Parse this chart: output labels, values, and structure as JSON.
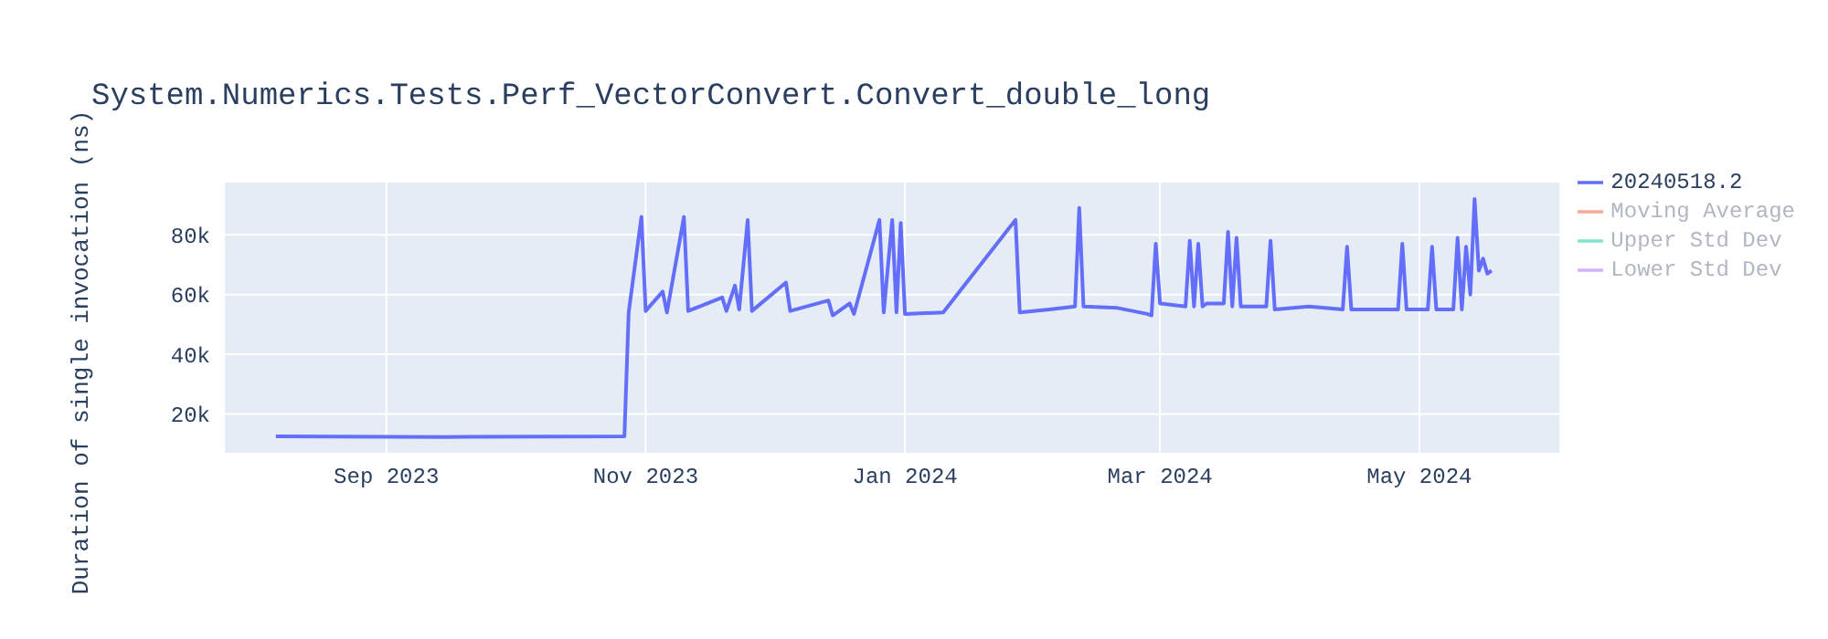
{
  "chart_data": {
    "type": "line",
    "title": "System.Numerics.Tests.Perf_VectorConvert.Convert_double_long",
    "ylabel": "Duration of single invocation (ns)",
    "x": [
      "2023-08-06",
      "2023-09-15",
      "2023-10-10",
      "2023-10-27",
      "2023-10-28",
      "2023-10-31",
      "2023-11-01",
      "2023-11-05",
      "2023-11-06",
      "2023-11-10",
      "2023-11-11",
      "2023-11-19",
      "2023-11-20",
      "2023-11-22",
      "2023-11-23",
      "2023-11-25",
      "2023-11-26",
      "2023-12-04",
      "2023-12-05",
      "2023-12-14",
      "2023-12-15",
      "2023-12-19",
      "2023-12-20",
      "2023-12-26",
      "2023-12-27",
      "2023-12-29",
      "2023-12-30",
      "2023-12-31",
      "2024-01-01",
      "2024-01-10",
      "2024-01-27",
      "2024-01-28",
      "2024-02-04",
      "2024-02-10",
      "2024-02-11",
      "2024-02-12",
      "2024-02-20",
      "2024-02-27",
      "2024-02-28",
      "2024-02-29",
      "2024-03-01",
      "2024-03-07",
      "2024-03-08",
      "2024-03-09",
      "2024-03-10",
      "2024-03-11",
      "2024-03-12",
      "2024-03-16",
      "2024-03-17",
      "2024-03-18",
      "2024-03-19",
      "2024-03-20",
      "2024-03-26",
      "2024-03-27",
      "2024-03-28",
      "2024-04-05",
      "2024-04-13",
      "2024-04-14",
      "2024-04-15",
      "2024-04-26",
      "2024-04-27",
      "2024-04-28",
      "2024-05-03",
      "2024-05-04",
      "2024-05-05",
      "2024-05-09",
      "2024-05-10",
      "2024-05-11",
      "2024-05-12",
      "2024-05-13",
      "2024-05-14",
      "2024-05-15",
      "2024-05-16",
      "2024-05-17",
      "2024-05-18"
    ],
    "series": [
      {
        "name": "20240518.2",
        "color": "#636efa",
        "values": [
          12500,
          12300,
          12400,
          12500,
          54000,
          86000,
          54500,
          61000,
          54000,
          86000,
          54500,
          59000,
          54500,
          63000,
          55000,
          85000,
          54500,
          64000,
          54500,
          58000,
          53000,
          57000,
          53500,
          85000,
          54000,
          85000,
          54000,
          84000,
          53500,
          54000,
          85000,
          54000,
          55000,
          56000,
          89000,
          56000,
          55500,
          53500,
          53000,
          77000,
          57000,
          56000,
          78000,
          56000,
          77000,
          56000,
          57000,
          57000,
          81000,
          56000,
          79000,
          56000,
          56000,
          78000,
          55000,
          56000,
          55000,
          76000,
          55000,
          55000,
          77000,
          55000,
          55000,
          76000,
          55000,
          55000,
          79000,
          55000,
          76000,
          60000,
          92000,
          68000,
          72000,
          67000,
          68000
        ]
      },
      {
        "name": "Moving Average",
        "color": "#f7aa9d",
        "values": [
          null,
          null,
          null,
          null,
          null,
          null,
          null,
          null,
          null,
          null,
          null,
          null,
          null,
          null,
          null,
          null,
          null,
          null,
          null,
          null,
          null,
          null,
          null,
          null,
          null,
          null,
          null,
          null,
          null,
          null,
          null,
          null,
          null,
          null,
          null,
          null,
          null,
          null,
          null,
          null,
          null,
          null,
          null,
          null,
          null,
          null,
          null,
          null,
          null,
          null,
          null,
          null,
          null,
          null,
          null,
          null,
          null,
          null,
          null,
          null,
          null,
          null,
          null,
          null,
          null,
          null,
          null,
          null,
          null,
          null,
          null,
          null,
          null,
          null,
          null
        ]
      },
      {
        "name": "Upper Std Dev",
        "color": "#80e5ca",
        "values": [
          null,
          null,
          null,
          null,
          null,
          null,
          null,
          null,
          null,
          null,
          null,
          null,
          null,
          null,
          null,
          null,
          null,
          null,
          null,
          null,
          null,
          null,
          null,
          null,
          null,
          null,
          null,
          null,
          null,
          null,
          null,
          null,
          null,
          null,
          null,
          null,
          null,
          null,
          null,
          null,
          null,
          null,
          null,
          null,
          null,
          null,
          null,
          null,
          null,
          null,
          null,
          null,
          null,
          null,
          null,
          null,
          null,
          null,
          null,
          null,
          null,
          null,
          null,
          null,
          null,
          null,
          null,
          null,
          null,
          null,
          null,
          null,
          null,
          null,
          null
        ]
      },
      {
        "name": "Lower Std Dev",
        "color": "#d5b1fc",
        "values": [
          null,
          null,
          null,
          null,
          null,
          null,
          null,
          null,
          null,
          null,
          null,
          null,
          null,
          null,
          null,
          null,
          null,
          null,
          null,
          null,
          null,
          null,
          null,
          null,
          null,
          null,
          null,
          null,
          null,
          null,
          null,
          null,
          null,
          null,
          null,
          null,
          null,
          null,
          null,
          null,
          null,
          null,
          null,
          null,
          null,
          null,
          null,
          null,
          null,
          null,
          null,
          null,
          null,
          null,
          null,
          null,
          null,
          null,
          null,
          null,
          null,
          null,
          null,
          null,
          null,
          null,
          null,
          null,
          null,
          null,
          null,
          null,
          null,
          null,
          null
        ]
      }
    ],
    "xlim": [
      "2023-07-25",
      "2024-06-03"
    ],
    "xticks": [
      {
        "value": "2023-09-01",
        "label": "Sep 2023"
      },
      {
        "value": "2023-11-01",
        "label": "Nov 2023"
      },
      {
        "value": "2024-01-01",
        "label": "Jan 2024"
      },
      {
        "value": "2024-03-01",
        "label": "Mar 2024"
      },
      {
        "value": "2024-05-01",
        "label": "May 2024"
      }
    ],
    "ylim": [
      7000,
      97500
    ],
    "yticks": [
      {
        "value": 20000,
        "label": "20k"
      },
      {
        "value": 40000,
        "label": "40k"
      },
      {
        "value": 60000,
        "label": "60k"
      },
      {
        "value": 80000,
        "label": "80k"
      }
    ],
    "grid": true,
    "legend": "top right",
    "marker": "none",
    "line_style": "solid"
  }
}
